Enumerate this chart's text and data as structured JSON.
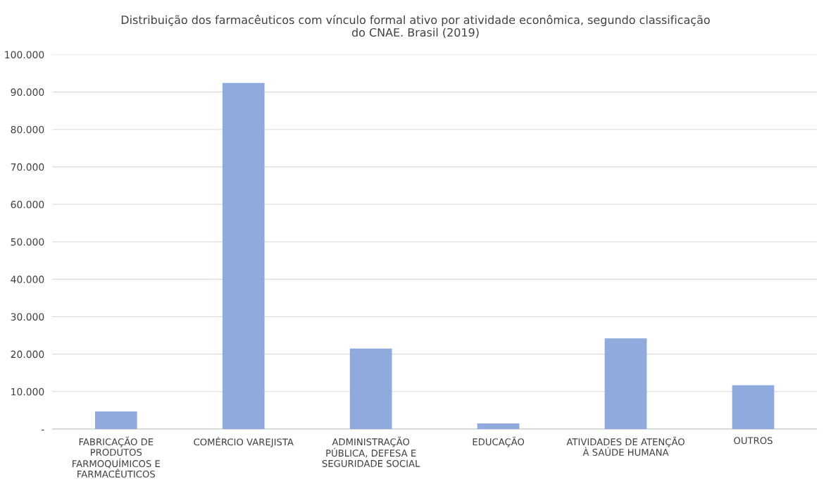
{
  "chart_data": {
    "type": "bar",
    "title": "Distribuição dos farmacêuticos com vínculo formal ativo por atividade econômica, segundo classificação\ndo CNAE. Brasil (2019)",
    "categories": [
      "FABRICAÇÃO DE\nPRODUTOS\nFARMOQUÍMICOS E\nFARMACÊUTICOS",
      "COMÉRCIO VAREJISTA",
      "ADMINISTRAÇÃO\nPÚBLICA, DEFESA E\nSEGURIDADE SOCIAL",
      "EDUCAÇÃO",
      "ATIVIDADES DE ATENÇÃO\nÀ SAÚDE HUMANA",
      "OUTROS"
    ],
    "values": [
      4700,
      92400,
      21500,
      1500,
      24200,
      11700
    ],
    "color": "#8faadc",
    "ylim": [
      0,
      100000
    ],
    "yticks": [
      {
        "value": 0,
        "label": "-"
      },
      {
        "value": 10000,
        "label": "10.000"
      },
      {
        "value": 20000,
        "label": "20.000"
      },
      {
        "value": 30000,
        "label": "30.000"
      },
      {
        "value": 40000,
        "label": "40.000"
      },
      {
        "value": 50000,
        "label": "50.000"
      },
      {
        "value": 60000,
        "label": "60.000"
      },
      {
        "value": 70000,
        "label": "70.000"
      },
      {
        "value": 80000,
        "label": "80.000"
      },
      {
        "value": 90000,
        "label": "90.000"
      },
      {
        "value": 100000,
        "label": "100.000"
      }
    ],
    "grid": "y",
    "legend": false
  }
}
